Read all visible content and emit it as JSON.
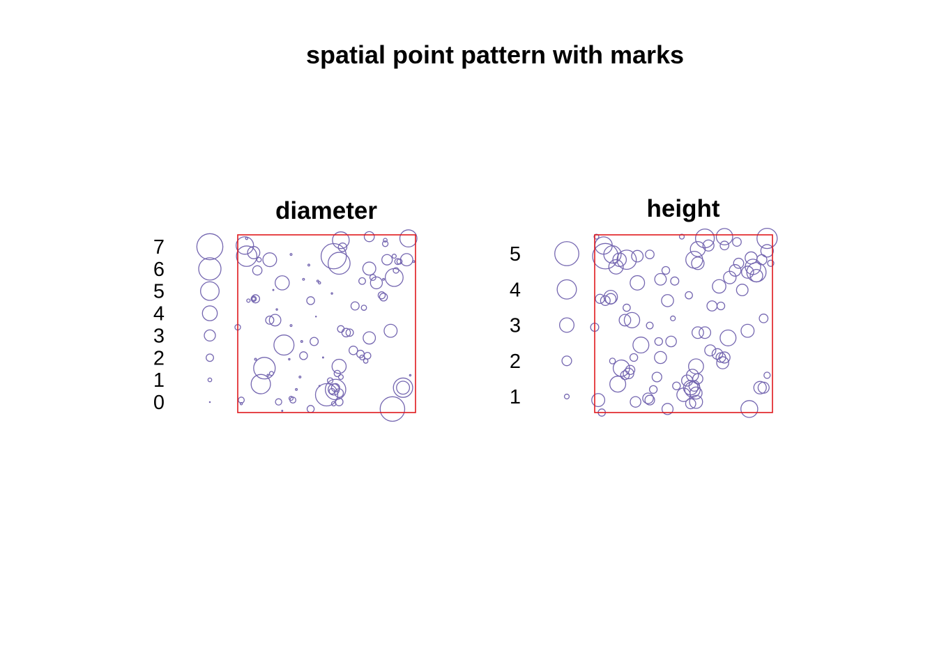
{
  "title": "spatial point pattern with marks",
  "colors": {
    "window": "#e0181c",
    "marks": "#7466b0",
    "text": "#000000"
  },
  "chart_data": [
    {
      "type": "scatter",
      "title": "diameter",
      "xlim": [
        0,
        1
      ],
      "ylim": [
        0,
        1
      ],
      "window": "square",
      "legend": {
        "position": "left",
        "values": [
          0,
          1,
          2,
          3,
          4,
          5,
          6,
          7
        ]
      },
      "mark_max": 7.5,
      "points": [
        {
          "x": 0.05,
          "y": 0.98,
          "m": 0.6
        },
        {
          "x": 0.04,
          "y": 0.94,
          "m": 4.7
        },
        {
          "x": 0.05,
          "y": 0.88,
          "m": 5.5
        },
        {
          "x": 0.09,
          "y": 0.9,
          "m": 3.3
        },
        {
          "x": 0.12,
          "y": 0.86,
          "m": 1.2
        },
        {
          "x": 0.18,
          "y": 0.86,
          "m": 3.7
        },
        {
          "x": 0.11,
          "y": 0.8,
          "m": 2.5
        },
        {
          "x": 0.3,
          "y": 0.89,
          "m": 0.5
        },
        {
          "x": 0.4,
          "y": 0.83,
          "m": 0.5
        },
        {
          "x": 0.58,
          "y": 0.97,
          "m": 4.5
        },
        {
          "x": 0.74,
          "y": 0.99,
          "m": 2.7
        },
        {
          "x": 0.96,
          "y": 0.98,
          "m": 4.6
        },
        {
          "x": 0.59,
          "y": 0.93,
          "m": 2.3
        },
        {
          "x": 0.57,
          "y": 0.84,
          "m": 5.9
        },
        {
          "x": 0.54,
          "y": 0.88,
          "m": 6.8
        },
        {
          "x": 0.83,
          "y": 0.97,
          "m": 1.0
        },
        {
          "x": 0.83,
          "y": 0.95,
          "m": 1.5
        },
        {
          "x": 0.84,
          "y": 0.86,
          "m": 2.8
        },
        {
          "x": 0.88,
          "y": 0.88,
          "m": 1.1
        },
        {
          "x": 0.9,
          "y": 0.85,
          "m": 1.6
        },
        {
          "x": 0.91,
          "y": 0.85,
          "m": 1.4
        },
        {
          "x": 0.95,
          "y": 0.86,
          "m": 3.3
        },
        {
          "x": 0.99,
          "y": 0.85,
          "m": 0.5
        },
        {
          "x": 0.74,
          "y": 0.81,
          "m": 3.5
        },
        {
          "x": 0.88,
          "y": 0.76,
          "m": 4.8
        },
        {
          "x": 0.89,
          "y": 0.8,
          "m": 1.5
        },
        {
          "x": 0.76,
          "y": 0.76,
          "m": 1.6
        },
        {
          "x": 0.82,
          "y": 0.75,
          "m": 0.5
        },
        {
          "x": 0.7,
          "y": 0.74,
          "m": 1.8
        },
        {
          "x": 0.78,
          "y": 0.73,
          "m": 3.2
        },
        {
          "x": 0.25,
          "y": 0.73,
          "m": 3.8
        },
        {
          "x": 0.37,
          "y": 0.75,
          "m": 0.5
        },
        {
          "x": 0.45,
          "y": 0.74,
          "m": 0.5
        },
        {
          "x": 0.46,
          "y": 0.73,
          "m": 0.6
        },
        {
          "x": 0.53,
          "y": 0.67,
          "m": 0.4
        },
        {
          "x": 0.81,
          "y": 0.66,
          "m": 1.9
        },
        {
          "x": 0.82,
          "y": 0.65,
          "m": 2.1
        },
        {
          "x": 0.09,
          "y": 0.64,
          "m": 1.4
        },
        {
          "x": 0.1,
          "y": 0.64,
          "m": 2.2
        },
        {
          "x": 0.06,
          "y": 0.63,
          "m": 0.9
        },
        {
          "x": 0.09,
          "y": 0.64,
          "m": 0.9
        },
        {
          "x": 0.2,
          "y": 0.69,
          "m": 0.3
        },
        {
          "x": 0.41,
          "y": 0.63,
          "m": 2.1
        },
        {
          "x": 0.22,
          "y": 0.58,
          "m": 0.4
        },
        {
          "x": 0.66,
          "y": 0.6,
          "m": 2.2
        },
        {
          "x": 0.71,
          "y": 0.59,
          "m": 1.4
        },
        {
          "x": 0.18,
          "y": 0.52,
          "m": 2.2
        },
        {
          "x": 0.21,
          "y": 0.52,
          "m": 3.1
        },
        {
          "x": 0.3,
          "y": 0.49,
          "m": 0.5
        },
        {
          "x": 0.44,
          "y": 0.54,
          "m": 0.1
        },
        {
          "x": 0.58,
          "y": 0.47,
          "m": 1.8
        },
        {
          "x": 0.61,
          "y": 0.45,
          "m": 2.3
        },
        {
          "x": 0.63,
          "y": 0.45,
          "m": 2.0
        },
        {
          "x": 0.86,
          "y": 0.46,
          "m": 3.5
        },
        {
          "x": 0.0,
          "y": 0.48,
          "m": 1.5
        },
        {
          "x": 0.74,
          "y": 0.42,
          "m": 3.3
        },
        {
          "x": 0.26,
          "y": 0.38,
          "m": 5.4
        },
        {
          "x": 0.36,
          "y": 0.4,
          "m": 0.5
        },
        {
          "x": 0.43,
          "y": 0.4,
          "m": 2.2
        },
        {
          "x": 0.65,
          "y": 0.35,
          "m": 2.3
        },
        {
          "x": 0.69,
          "y": 0.33,
          "m": 2.0
        },
        {
          "x": 0.7,
          "y": 0.31,
          "m": 1.3
        },
        {
          "x": 0.73,
          "y": 0.32,
          "m": 1.8
        },
        {
          "x": 0.72,
          "y": 0.29,
          "m": 1.2
        },
        {
          "x": 0.37,
          "y": 0.32,
          "m": 2.1
        },
        {
          "x": 0.29,
          "y": 0.3,
          "m": 0.4
        },
        {
          "x": 0.1,
          "y": 0.3,
          "m": 0.5
        },
        {
          "x": 0.15,
          "y": 0.25,
          "m": 5.8
        },
        {
          "x": 0.17,
          "y": 0.21,
          "m": 0.5
        },
        {
          "x": 0.19,
          "y": 0.22,
          "m": 1.1
        },
        {
          "x": 0.13,
          "y": 0.16,
          "m": 5.2
        },
        {
          "x": 0.57,
          "y": 0.26,
          "m": 3.8
        },
        {
          "x": 0.56,
          "y": 0.22,
          "m": 1.7
        },
        {
          "x": 0.58,
          "y": 0.2,
          "m": 1.3
        },
        {
          "x": 0.35,
          "y": 0.2,
          "m": 0.5
        },
        {
          "x": 0.52,
          "y": 0.18,
          "m": 1.5
        },
        {
          "x": 0.55,
          "y": 0.13,
          "m": 5.5
        },
        {
          "x": 0.54,
          "y": 0.13,
          "m": 3.0
        },
        {
          "x": 0.55,
          "y": 0.14,
          "m": 2.2
        },
        {
          "x": 0.53,
          "y": 0.12,
          "m": 1.5
        },
        {
          "x": 0.5,
          "y": 0.1,
          "m": 6.0
        },
        {
          "x": 0.57,
          "y": 0.11,
          "m": 2.3
        },
        {
          "x": 0.46,
          "y": 0.15,
          "m": 0.3
        },
        {
          "x": 0.33,
          "y": 0.13,
          "m": 0.5
        },
        {
          "x": 0.31,
          "y": 0.07,
          "m": 1.6
        },
        {
          "x": 0.3,
          "y": 0.08,
          "m": 1.1
        },
        {
          "x": 0.23,
          "y": 0.06,
          "m": 1.7
        },
        {
          "x": 0.41,
          "y": 0.02,
          "m": 1.9
        },
        {
          "x": 0.57,
          "y": 0.06,
          "m": 2.1
        },
        {
          "x": 0.54,
          "y": 0.05,
          "m": 1.2
        },
        {
          "x": 0.87,
          "y": 0.02,
          "m": 6.6
        },
        {
          "x": 0.93,
          "y": 0.14,
          "m": 3.5
        },
        {
          "x": 0.93,
          "y": 0.14,
          "m": 5.2
        },
        {
          "x": 0.97,
          "y": 0.21,
          "m": 0.4
        },
        {
          "x": 0.02,
          "y": 0.07,
          "m": 1.6
        },
        {
          "x": 0.02,
          "y": 0.05,
          "m": 0.6
        },
        {
          "x": 0.25,
          "y": 0.01,
          "m": 0.3
        },
        {
          "x": 0.48,
          "y": 0.31,
          "m": 0.3
        }
      ]
    },
    {
      "type": "scatter",
      "title": "height",
      "xlim": [
        0,
        1
      ],
      "ylim": [
        0,
        1
      ],
      "window": "square",
      "legend": {
        "position": "left",
        "values": [
          1,
          2,
          3,
          4,
          5
        ]
      },
      "mark_max": 5.5,
      "points": [
        {
          "x": 0.01,
          "y": 0.99,
          "m": 1.0
        },
        {
          "x": 0.05,
          "y": 0.94,
          "m": 3.6
        },
        {
          "x": 0.06,
          "y": 0.88,
          "m": 5.3
        },
        {
          "x": 0.1,
          "y": 0.89,
          "m": 3.6
        },
        {
          "x": 0.12,
          "y": 0.82,
          "m": 3.0
        },
        {
          "x": 0.14,
          "y": 0.86,
          "m": 2.8
        },
        {
          "x": 0.18,
          "y": 0.86,
          "m": 4.0
        },
        {
          "x": 0.24,
          "y": 0.88,
          "m": 2.4
        },
        {
          "x": 0.31,
          "y": 0.89,
          "m": 1.8
        },
        {
          "x": 0.49,
          "y": 0.99,
          "m": 1.0
        },
        {
          "x": 0.62,
          "y": 0.98,
          "m": 3.9
        },
        {
          "x": 0.73,
          "y": 0.99,
          "m": 3.4
        },
        {
          "x": 0.97,
          "y": 0.98,
          "m": 4.2
        },
        {
          "x": 0.58,
          "y": 0.92,
          "m": 3.1
        },
        {
          "x": 0.56,
          "y": 0.86,
          "m": 3.5
        },
        {
          "x": 0.58,
          "y": 0.84,
          "m": 2.6
        },
        {
          "x": 0.64,
          "y": 0.94,
          "m": 2.3
        },
        {
          "x": 0.73,
          "y": 0.94,
          "m": 1.8
        },
        {
          "x": 0.8,
          "y": 0.96,
          "m": 1.8
        },
        {
          "x": 0.81,
          "y": 0.84,
          "m": 2.1
        },
        {
          "x": 0.88,
          "y": 0.87,
          "m": 2.5
        },
        {
          "x": 0.94,
          "y": 0.86,
          "m": 2.1
        },
        {
          "x": 0.99,
          "y": 0.84,
          "m": 1.3
        },
        {
          "x": 0.97,
          "y": 0.91,
          "m": 2.6
        },
        {
          "x": 0.79,
          "y": 0.8,
          "m": 2.4
        },
        {
          "x": 0.86,
          "y": 0.79,
          "m": 2.5
        },
        {
          "x": 0.89,
          "y": 0.82,
          "m": 3.2
        },
        {
          "x": 0.91,
          "y": 0.79,
          "m": 4.0
        },
        {
          "x": 0.91,
          "y": 0.77,
          "m": 2.6
        },
        {
          "x": 0.76,
          "y": 0.76,
          "m": 2.6
        },
        {
          "x": 0.7,
          "y": 0.71,
          "m": 2.8
        },
        {
          "x": 0.83,
          "y": 0.69,
          "m": 2.4
        },
        {
          "x": 0.24,
          "y": 0.73,
          "m": 3.0
        },
        {
          "x": 0.37,
          "y": 0.75,
          "m": 2.4
        },
        {
          "x": 0.4,
          "y": 0.8,
          "m": 1.6
        },
        {
          "x": 0.45,
          "y": 0.74,
          "m": 1.7
        },
        {
          "x": 0.09,
          "y": 0.65,
          "m": 2.8
        },
        {
          "x": 0.09,
          "y": 0.64,
          "m": 2.2
        },
        {
          "x": 0.06,
          "y": 0.63,
          "m": 2.0
        },
        {
          "x": 0.03,
          "y": 0.64,
          "m": 1.9
        },
        {
          "x": 0.41,
          "y": 0.63,
          "m": 2.5
        },
        {
          "x": 0.53,
          "y": 0.66,
          "m": 1.5
        },
        {
          "x": 0.66,
          "y": 0.6,
          "m": 2.1
        },
        {
          "x": 0.71,
          "y": 0.6,
          "m": 1.6
        },
        {
          "x": 0.18,
          "y": 0.59,
          "m": 1.5
        },
        {
          "x": 0.17,
          "y": 0.52,
          "m": 2.4
        },
        {
          "x": 0.21,
          "y": 0.52,
          "m": 3.2
        },
        {
          "x": 0.31,
          "y": 0.49,
          "m": 1.4
        },
        {
          "x": 0.44,
          "y": 0.53,
          "m": 1.0
        },
        {
          "x": 0.58,
          "y": 0.45,
          "m": 2.4
        },
        {
          "x": 0.62,
          "y": 0.45,
          "m": 2.4
        },
        {
          "x": 0.86,
          "y": 0.46,
          "m": 2.7
        },
        {
          "x": 0.95,
          "y": 0.53,
          "m": 1.8
        },
        {
          "x": 0.0,
          "y": 0.48,
          "m": 1.7
        },
        {
          "x": 0.75,
          "y": 0.42,
          "m": 3.3
        },
        {
          "x": 0.26,
          "y": 0.38,
          "m": 3.3
        },
        {
          "x": 0.36,
          "y": 0.4,
          "m": 1.6
        },
        {
          "x": 0.43,
          "y": 0.4,
          "m": 2.2
        },
        {
          "x": 0.65,
          "y": 0.35,
          "m": 2.3
        },
        {
          "x": 0.69,
          "y": 0.33,
          "m": 2.2
        },
        {
          "x": 0.71,
          "y": 0.31,
          "m": 2.0
        },
        {
          "x": 0.73,
          "y": 0.31,
          "m": 2.3
        },
        {
          "x": 0.72,
          "y": 0.28,
          "m": 2.5
        },
        {
          "x": 0.37,
          "y": 0.31,
          "m": 2.5
        },
        {
          "x": 0.1,
          "y": 0.29,
          "m": 1.2
        },
        {
          "x": 0.15,
          "y": 0.25,
          "m": 3.4
        },
        {
          "x": 0.19,
          "y": 0.22,
          "m": 2.2
        },
        {
          "x": 0.17,
          "y": 0.21,
          "m": 1.8
        },
        {
          "x": 0.13,
          "y": 0.16,
          "m": 3.3
        },
        {
          "x": 0.57,
          "y": 0.26,
          "m": 3.1
        },
        {
          "x": 0.55,
          "y": 0.21,
          "m": 2.5
        },
        {
          "x": 0.58,
          "y": 0.19,
          "m": 2.1
        },
        {
          "x": 0.35,
          "y": 0.2,
          "m": 2.0
        },
        {
          "x": 0.52,
          "y": 0.18,
          "m": 2.3
        },
        {
          "x": 0.55,
          "y": 0.13,
          "m": 3.2
        },
        {
          "x": 0.54,
          "y": 0.14,
          "m": 3.0
        },
        {
          "x": 0.56,
          "y": 0.15,
          "m": 2.2
        },
        {
          "x": 0.5,
          "y": 0.1,
          "m": 2.8
        },
        {
          "x": 0.57,
          "y": 0.11,
          "m": 2.5
        },
        {
          "x": 0.46,
          "y": 0.15,
          "m": 1.6
        },
        {
          "x": 0.33,
          "y": 0.13,
          "m": 1.6
        },
        {
          "x": 0.31,
          "y": 0.07,
          "m": 2.0
        },
        {
          "x": 0.3,
          "y": 0.08,
          "m": 2.2
        },
        {
          "x": 0.23,
          "y": 0.06,
          "m": 2.2
        },
        {
          "x": 0.41,
          "y": 0.02,
          "m": 2.3
        },
        {
          "x": 0.57,
          "y": 0.06,
          "m": 2.7
        },
        {
          "x": 0.54,
          "y": 0.05,
          "m": 2.1
        },
        {
          "x": 0.87,
          "y": 0.02,
          "m": 3.5
        },
        {
          "x": 0.93,
          "y": 0.14,
          "m": 2.6
        },
        {
          "x": 0.95,
          "y": 0.14,
          "m": 2.3
        },
        {
          "x": 0.97,
          "y": 0.21,
          "m": 1.3
        },
        {
          "x": 0.02,
          "y": 0.07,
          "m": 2.7
        },
        {
          "x": 0.04,
          "y": 0.0,
          "m": 1.5
        },
        {
          "x": 0.2,
          "y": 0.24,
          "m": 1.9
        },
        {
          "x": 0.22,
          "y": 0.31,
          "m": 1.6
        }
      ]
    }
  ]
}
